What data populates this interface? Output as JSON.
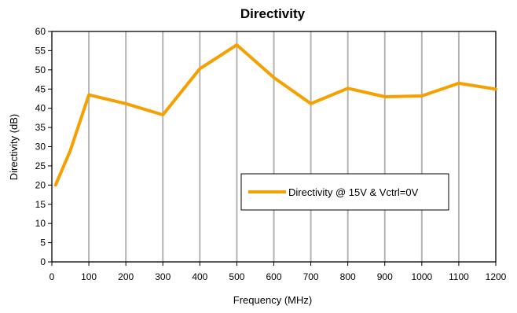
{
  "chart_data": {
    "type": "line",
    "title": "Directivity",
    "xlabel": "Frequency (MHz)",
    "ylabel": "Directivity (dB)",
    "xlim": [
      0,
      1200
    ],
    "ylim": [
      0,
      60
    ],
    "y_ticks": [
      0,
      5,
      10,
      15,
      20,
      25,
      30,
      35,
      40,
      45,
      50,
      55,
      60
    ],
    "x_tick_labels": [
      "0",
      "100",
      "200",
      "300",
      "400",
      "500",
      "600",
      "700",
      "800",
      "900",
      "1000",
      "1100",
      "1200"
    ],
    "x_ticks": [
      0,
      100,
      200,
      300,
      400,
      500,
      600,
      700,
      800,
      900,
      1000,
      1100,
      1200
    ],
    "grid": "vertical",
    "legend_position": "center-right",
    "series": [
      {
        "name": "Directivity @ 15V & Vctrl=0V",
        "color": "#f5a000",
        "x": [
          10,
          50,
          100,
          200,
          300,
          400,
          500,
          600,
          700,
          800,
          900,
          1000,
          1100,
          1200
        ],
        "y": [
          20,
          29,
          43.5,
          41.2,
          38.3,
          50.3,
          56.5,
          48,
          41.2,
          45.2,
          43,
          43.2,
          46.5,
          45
        ]
      }
    ]
  }
}
